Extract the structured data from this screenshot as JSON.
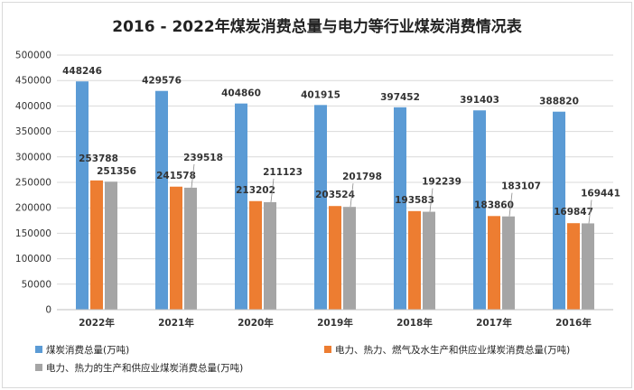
{
  "chart_data": {
    "type": "bar",
    "title": "2016 - 2022年煤炭消费总量与电力等行业煤炭消费情况表",
    "xlabel": "",
    "ylabel": "",
    "categories": [
      "2022年",
      "2021年",
      "2020年",
      "2019年",
      "2018年",
      "2017年",
      "2016年"
    ],
    "series": [
      {
        "name": "煤炭消费总量(万吨)",
        "color": "#5b9bd5",
        "values": [
          448246,
          429576,
          404860,
          401915,
          397452,
          391403,
          388820
        ]
      },
      {
        "name": "电力、热力、燃气及水生产和供应业煤炭消费总量(万吨)",
        "color": "#ed7d31",
        "values": [
          253788,
          241578,
          213202,
          203524,
          193583,
          183860,
          169847
        ]
      },
      {
        "name": "电力、热力的生产和供应业煤炭消费总量(万吨)",
        "color": "#a5a5a5",
        "values": [
          251356,
          239518,
          211123,
          201798,
          192239,
          183107,
          169441
        ]
      }
    ],
    "ylim": [
      0,
      500000
    ],
    "yticks": [
      "0",
      "50000",
      "100000",
      "150000",
      "200000",
      "250000",
      "300000",
      "350000",
      "400000",
      "450000",
      "500000"
    ],
    "grid": true,
    "legend_position": "bottom"
  }
}
